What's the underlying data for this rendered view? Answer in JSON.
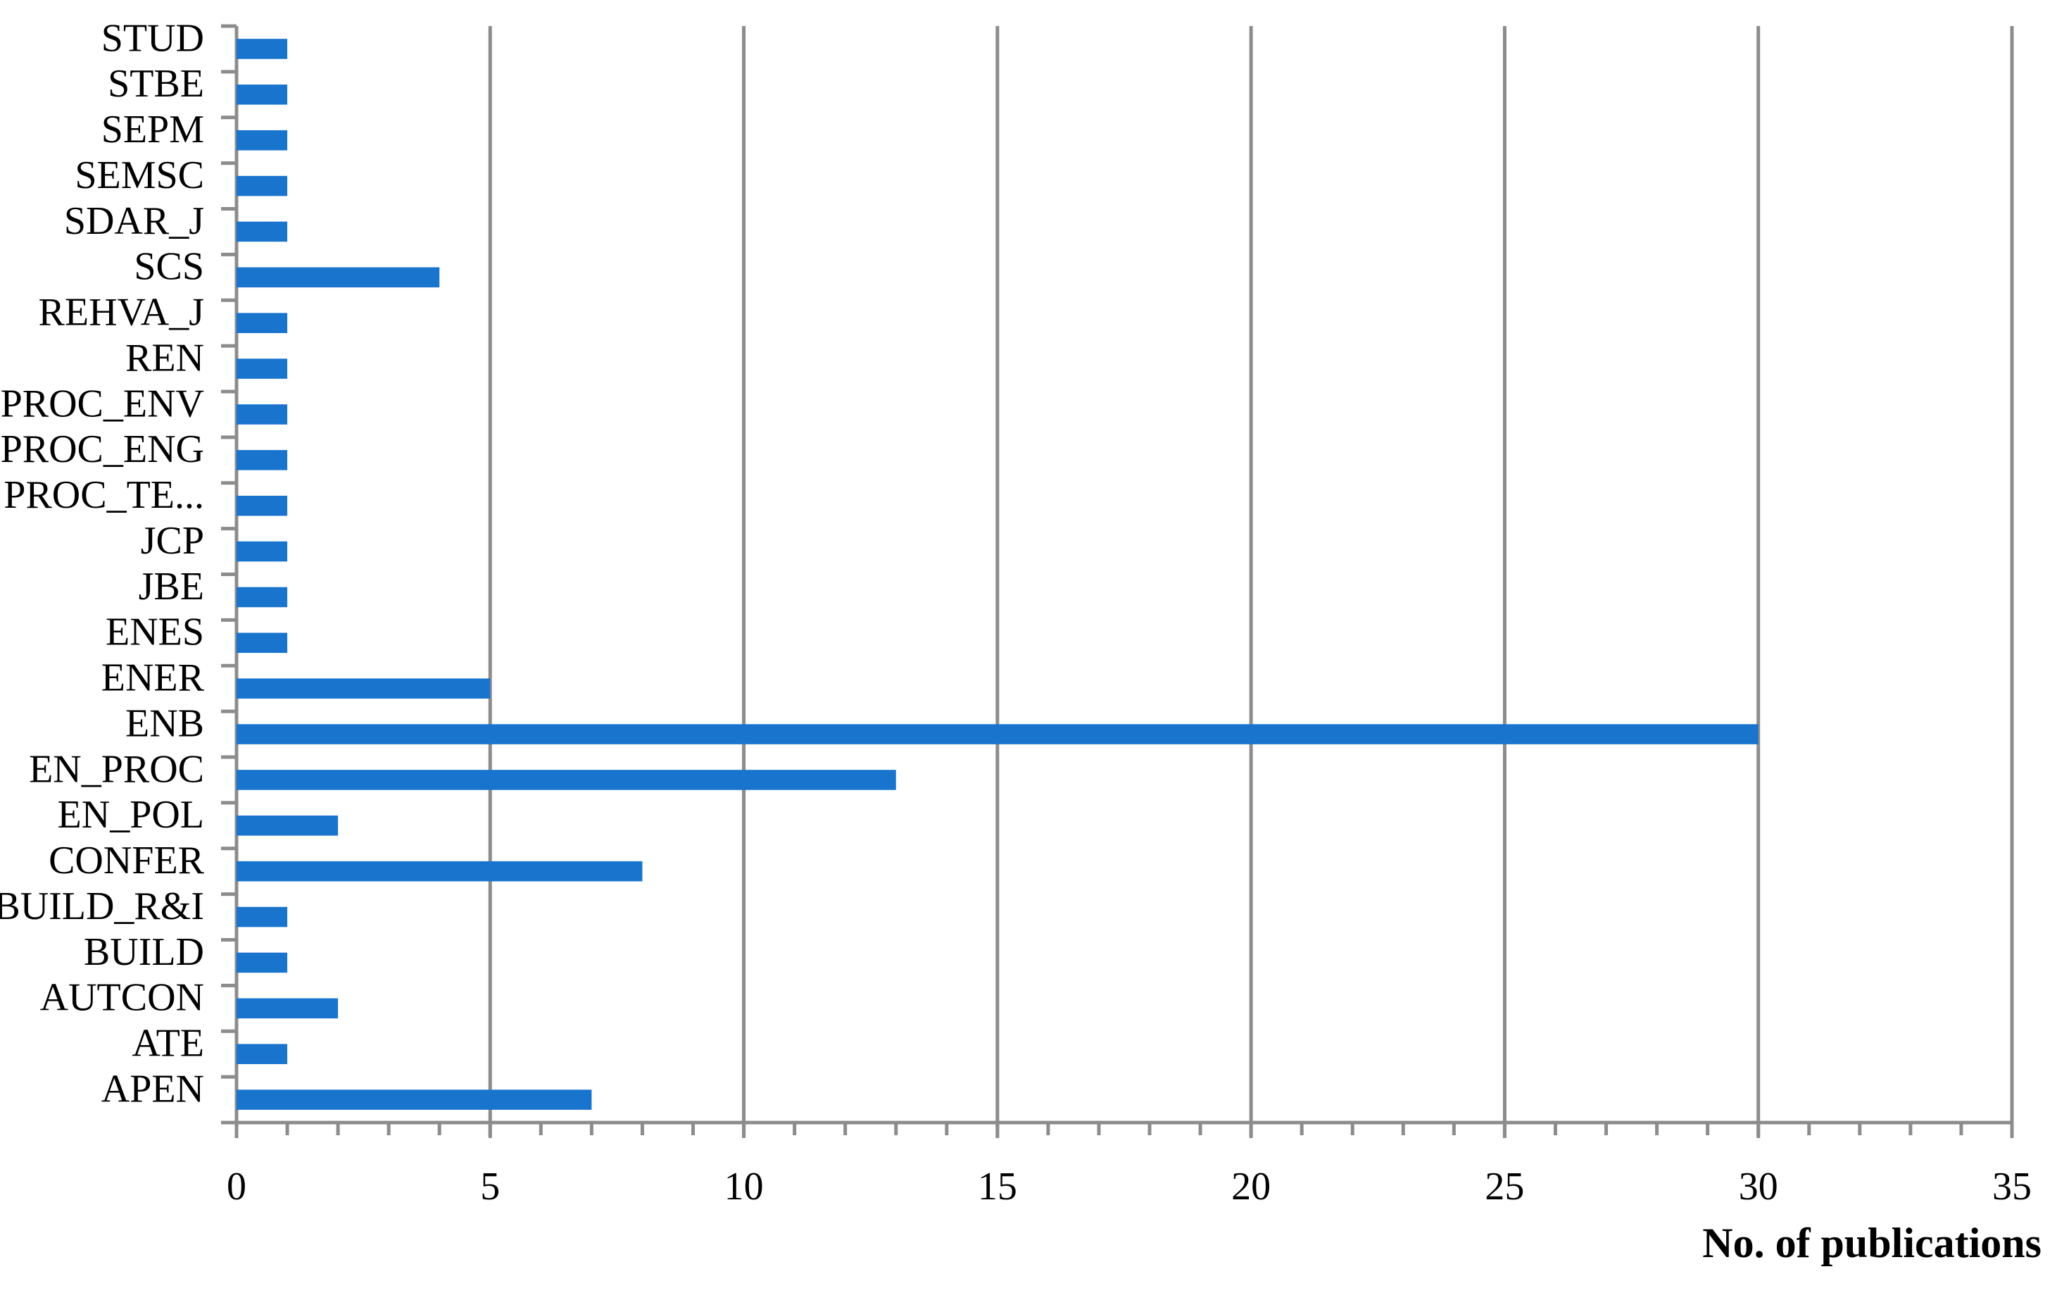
{
  "chart_data": {
    "type": "barh",
    "x_label": "No. of publications",
    "categories": [
      "APEN",
      "ATE",
      "AUTCON",
      "BUILD",
      "BUILD_R&I",
      "CONFER",
      "EN_POL",
      "EN_PROC",
      "ENB",
      "ENER",
      "ENES",
      "JBE",
      "JCP",
      "PROC_TE...",
      "PROC_ENG",
      "PROC_ENV",
      "REN",
      "REHVA_J",
      "SCS",
      "SDAR_J",
      "SEMSC",
      "SEPM",
      "STBE",
      "STUD"
    ],
    "values": [
      7,
      1,
      2,
      1,
      1,
      8,
      2,
      13,
      30,
      5,
      1,
      1,
      1,
      1,
      1,
      1,
      1,
      1,
      4,
      1,
      1,
      1,
      1,
      1
    ],
    "color": "#1874cd",
    "xlim": [
      0,
      35
    ],
    "xticks": [
      0,
      5,
      10,
      15,
      20,
      25,
      30,
      35
    ],
    "minor_xticks": [
      0,
      1,
      2,
      3,
      4,
      5,
      6,
      7,
      8,
      9,
      10,
      11,
      12,
      13,
      14,
      15,
      16,
      17,
      18,
      19,
      20,
      21,
      22,
      23,
      24,
      25,
      26,
      27,
      28,
      29,
      30,
      31,
      32,
      33,
      34,
      35
    ],
    "grid": true
  }
}
